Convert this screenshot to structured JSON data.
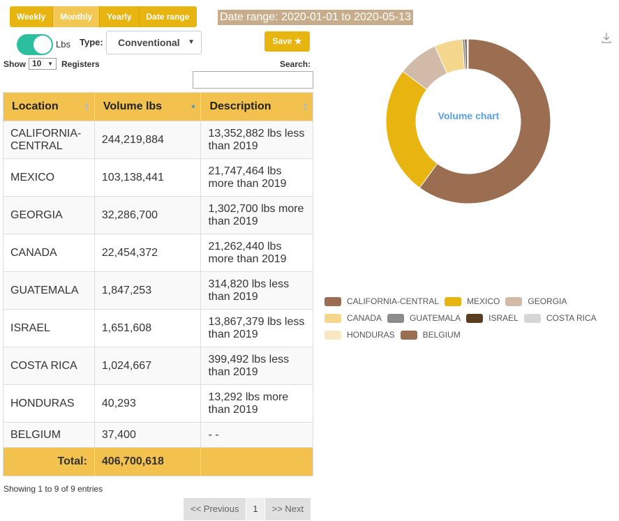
{
  "period_buttons": [
    "Weekly",
    "Monthly",
    "Yearly",
    "Date range"
  ],
  "active_period": "Monthly",
  "date_range": "Date range: 2020-01-01 to 2020-05-13",
  "unit_toggle": {
    "label": "Lbs",
    "on": true
  },
  "type": {
    "label": "Type:",
    "value": "Conventional"
  },
  "save_label": "Save ★",
  "show": {
    "label": "Show",
    "value": "10",
    "suffix": "Registers"
  },
  "search_label": "Search:",
  "table": {
    "headers": [
      "Location",
      "Volume lbs",
      "Description"
    ],
    "rows": [
      {
        "location": "CALIFORNIA-CENTRAL",
        "volume": "244,219,884",
        "description": "13,352,882 lbs less than 2019"
      },
      {
        "location": "MEXICO",
        "volume": "103,138,441",
        "description": "21,747,464 lbs more than 2019"
      },
      {
        "location": "GEORGIA",
        "volume": "32,286,700",
        "description": "1,302,700 lbs more than 2019"
      },
      {
        "location": "CANADA",
        "volume": "22,454,372",
        "description": "21,262,440 lbs more than 2019"
      },
      {
        "location": "GUATEMALA",
        "volume": "1,847,253",
        "description": "314,820 lbs less than 2019"
      },
      {
        "location": "ISRAEL",
        "volume": "1,651,608",
        "description": "13,867,379 lbs less than 2019"
      },
      {
        "location": "COSTA RICA",
        "volume": "1,024,667",
        "description": "399,492 lbs less than 2019"
      },
      {
        "location": "HONDURAS",
        "volume": "40,293",
        "description": "13,292 lbs more than 2019"
      },
      {
        "location": "BELGIUM",
        "volume": "37,400",
        "description": "- -"
      }
    ],
    "total_label": "Total:",
    "total_value": "406,700,618"
  },
  "showing": "Showing 1 to 9 of 9 entries",
  "pagination": {
    "prev": "<< Previous",
    "page": "1",
    "next": ">> Next"
  },
  "chart_data": {
    "type": "pie",
    "title": "Volume chart",
    "legend_position": "bottom",
    "categories": [
      "CALIFORNIA-CENTRAL",
      "MEXICO",
      "GEORGIA",
      "CANADA",
      "GUATEMALA",
      "ISRAEL",
      "COSTA RICA",
      "HONDURAS",
      "BELGIUM"
    ],
    "values": [
      244219884,
      103138441,
      32286700,
      22454372,
      1847253,
      1651608,
      1024667,
      40293,
      37400
    ],
    "colors": [
      "#9b6e52",
      "#e8b40f",
      "#d2baa8",
      "#f4d68c",
      "#8c8c8c",
      "#5a3e22",
      "#d6d6d6",
      "#f7e8c2",
      "#9b6e52"
    ]
  }
}
